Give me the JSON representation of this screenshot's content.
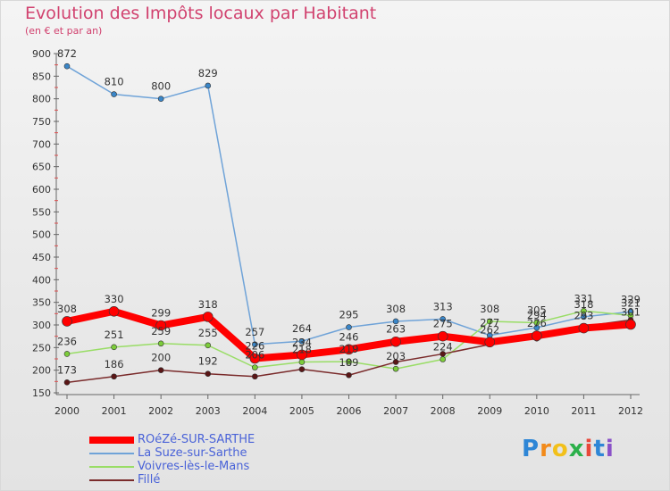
{
  "chart_data": {
    "type": "line",
    "title": "Evolution des Impôts locaux par Habitant",
    "subtitle": "(en € et par an)",
    "categories": [
      "2000",
      "2001",
      "2002",
      "2003",
      "2004",
      "2005",
      "2006",
      "2007",
      "2008",
      "2009",
      "2010",
      "2011",
      "2012"
    ],
    "ylim": [
      150,
      900
    ],
    "yticks": [
      150,
      200,
      250,
      300,
      350,
      400,
      450,
      500,
      550,
      600,
      650,
      700,
      750,
      800,
      850,
      900
    ],
    "grid": false,
    "legend_position": "bottom-left",
    "series": [
      {
        "name": "ROéZé-SUR-SARTHE",
        "color": "#ff0000",
        "stroke_width": 8,
        "values": [
          308,
          330,
          299,
          318,
          226,
          234,
          246,
          263,
          275,
          262,
          276,
          293,
          301
        ],
        "labels": [
          "308",
          "330",
          "299",
          "318",
          "226",
          "234",
          "246",
          "263",
          "275",
          "262",
          "276",
          "293",
          "301"
        ],
        "label_offset": -14
      },
      {
        "name": "La Suze-sur-Sarthe",
        "color": "#6fa3d8",
        "stroke_width": 1.5,
        "dot_color": "#3a86c8",
        "values": [
          872,
          810,
          800,
          829,
          257,
          264,
          295,
          308,
          313,
          277,
          294,
          318,
          329
        ],
        "labels": [
          "872",
          "810",
          "800",
          "829",
          "257",
          "264",
          "295",
          "308",
          "313",
          "277",
          "294",
          "318",
          "329"
        ],
        "label_offset": -14
      },
      {
        "name": "Voivres-lès-le-Mans",
        "color": "#99dd66",
        "stroke_width": 1.5,
        "dot_color": "#7ccc3a",
        "values": [
          236,
          251,
          259,
          255,
          206,
          218,
          219,
          203,
          224,
          308,
          305,
          331,
          321
        ],
        "labels": [
          "236",
          "251",
          "259",
          "255",
          "206",
          "218",
          "219",
          "203",
          "224",
          "308",
          "305",
          "331",
          "321"
        ],
        "label_offset": -14
      },
      {
        "name": "Fillé",
        "color": "#7a2b2b",
        "stroke_width": 1.5,
        "dot_color": "#5a1616",
        "values": [
          173,
          186,
          200,
          192,
          186,
          202,
          189,
          218,
          236,
          257,
          270,
          297,
          311
        ],
        "labels": [
          "173",
          "186",
          "200",
          "192",
          "",
          "",
          "189",
          "",
          "",
          "",
          "",
          "",
          ""
        ],
        "label_offset": -14
      }
    ]
  },
  "logo": {
    "letters": [
      "P",
      "r",
      "o",
      "x",
      "i",
      "t",
      "i"
    ],
    "colors": [
      "#2e86d6",
      "#f28a1a",
      "#f2c01a",
      "#2bb04a",
      "#e8483a",
      "#2e86d6",
      "#8a52c8"
    ]
  }
}
